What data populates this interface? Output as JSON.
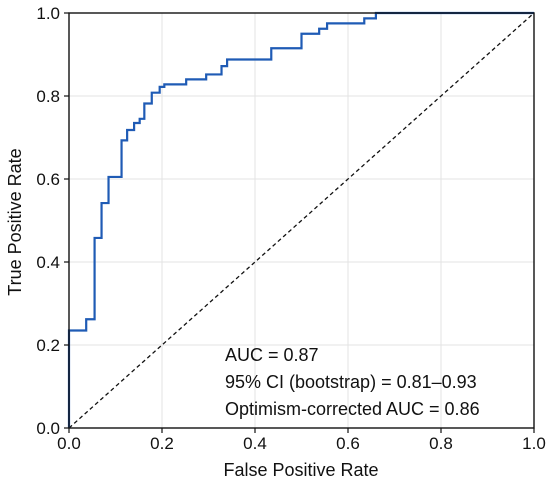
{
  "chart_data": {
    "type": "line",
    "title": "",
    "xlabel": "False Positive Rate",
    "ylabel": "True Positive Rate",
    "xlim": [
      0.0,
      1.0
    ],
    "ylim": [
      0.0,
      1.0
    ],
    "xticks": [
      "0.0",
      "0.2",
      "0.4",
      "0.6",
      "0.8",
      "1.0"
    ],
    "yticks": [
      "0.0",
      "0.2",
      "0.4",
      "0.6",
      "0.8",
      "1.0"
    ],
    "grid": true,
    "line_color": "#1f5bb5",
    "reference_color": "#111111",
    "series": [
      {
        "type": "roc-step",
        "x": [
          0.0,
          0.0,
          0.037,
          0.037,
          0.055,
          0.055,
          0.07,
          0.07,
          0.085,
          0.085,
          0.113,
          0.113,
          0.125,
          0.125,
          0.14,
          0.14,
          0.152,
          0.152,
          0.162,
          0.162,
          0.178,
          0.178,
          0.195,
          0.195,
          0.205,
          0.205,
          0.252,
          0.252,
          0.295,
          0.295,
          0.328,
          0.328,
          0.34,
          0.34,
          0.435,
          0.435,
          0.5,
          0.5,
          0.538,
          0.538,
          0.555,
          0.555,
          0.635,
          0.635,
          0.66,
          0.66,
          1.0
        ],
        "y": [
          0.0,
          0.235,
          0.235,
          0.262,
          0.262,
          0.458,
          0.458,
          0.542,
          0.542,
          0.605,
          0.605,
          0.693,
          0.693,
          0.718,
          0.718,
          0.735,
          0.735,
          0.745,
          0.745,
          0.782,
          0.782,
          0.808,
          0.808,
          0.822,
          0.822,
          0.828,
          0.828,
          0.84,
          0.84,
          0.852,
          0.852,
          0.872,
          0.872,
          0.888,
          0.888,
          0.915,
          0.915,
          0.95,
          0.95,
          0.962,
          0.962,
          0.975,
          0.975,
          0.987,
          0.987,
          1.0,
          1.0
        ]
      },
      {
        "type": "reference-diagonal",
        "x": [
          0.0,
          1.0
        ],
        "y": [
          0.0,
          1.0
        ]
      }
    ],
    "annotations": [
      "AUC = 0.87",
      "95% CI (bootstrap) = 0.81–0.93",
      "Optimism-corrected AUC = 0.86"
    ]
  }
}
